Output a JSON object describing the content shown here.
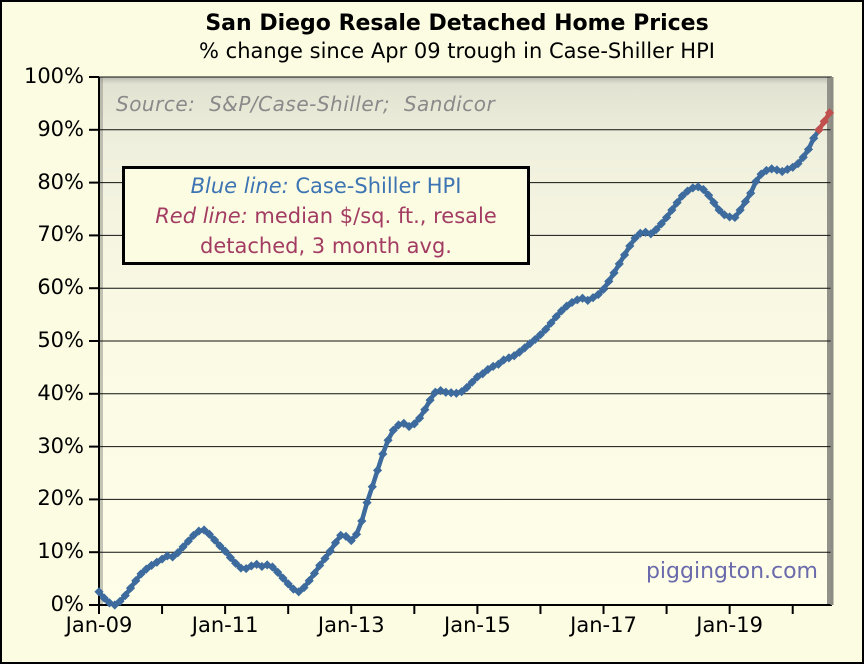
{
  "title": "San Diego Resale Detached Home Prices",
  "subtitle": "% change since Apr 09 trough in Case-Shiller HPI",
  "source_note": "Source:  S&P/Case-Shiller;  Sandicor",
  "watermark": "piggington.com",
  "legend": {
    "blue_prefix": "Blue line:",
    "blue_rest": " Case-Shiller HPI",
    "red_prefix": "Red line:",
    "red_rest": " median $/sq. ft., resale",
    "red_rest2": "detached, 3 month avg."
  },
  "colors": {
    "background": "#FCFCE2",
    "blue_line": "#3D6B9E",
    "red_line": "#C0504D",
    "legend_blue_text": "#3D74B3",
    "legend_red_text": "#A33C63",
    "source_gray": "#8A8A8A",
    "watermark_purple": "#6A6AAC"
  },
  "chart_data": {
    "type": "line",
    "title": "San Diego Resale Detached Home Prices",
    "subtitle": "% change since Apr 09 trough in Case-Shiller HPI",
    "x_unit": "month",
    "x_start": "Jan-2009",
    "x_end": "Aug-2020",
    "total_months": 140,
    "ylim": [
      0,
      100
    ],
    "grid": "horizontal",
    "y_ticks": [
      {
        "label": "100%",
        "value": 100
      },
      {
        "label": "90%",
        "value": 90
      },
      {
        "label": "80%",
        "value": 80
      },
      {
        "label": "70%",
        "value": 70
      },
      {
        "label": "60%",
        "value": 60
      },
      {
        "label": "50%",
        "value": 50
      },
      {
        "label": "40%",
        "value": 40
      },
      {
        "label": "30%",
        "value": 30
      },
      {
        "label": "20%",
        "value": 20
      },
      {
        "label": "10%",
        "value": 10
      },
      {
        "label": "0%",
        "value": 0
      }
    ],
    "x_ticks": [
      {
        "label": "Jan-09",
        "month_index": 0
      },
      {
        "label": "Jan-11",
        "month_index": 24
      },
      {
        "label": "Jan-13",
        "month_index": 48
      },
      {
        "label": "Jan-15",
        "month_index": 72
      },
      {
        "label": "Jan-17",
        "month_index": 96
      },
      {
        "label": "Jan-19",
        "month_index": 120
      }
    ],
    "minor_tick_months": [
      0,
      12,
      24,
      36,
      48,
      60,
      72,
      84,
      96,
      108,
      120,
      132
    ],
    "series": [
      {
        "name": "Case-Shiller HPI",
        "color": "#3D6B9E",
        "marker": "diamond",
        "start_index": 0,
        "start_month": "Jan-2009",
        "values": [
          2.5,
          1.3,
          0.4,
          0.0,
          0.7,
          1.8,
          3.2,
          4.6,
          5.9,
          6.8,
          7.5,
          8.1,
          8.7,
          9.3,
          9.1,
          9.9,
          11.0,
          12.1,
          13.2,
          14.0,
          14.2,
          13.4,
          12.3,
          11.2,
          10.2,
          9.0,
          7.9,
          7.0,
          6.9,
          7.4,
          7.7,
          7.3,
          7.6,
          7.2,
          6.2,
          5.1,
          4.0,
          3.0,
          2.5,
          3.3,
          4.6,
          6.0,
          7.5,
          8.8,
          10.2,
          11.8,
          13.2,
          13.0,
          12.2,
          13.4,
          15.9,
          19.4,
          22.4,
          25.5,
          28.6,
          31.2,
          33.1,
          34.1,
          34.4,
          33.8,
          34.3,
          35.4,
          37.0,
          38.8,
          40.3,
          40.6,
          40.3,
          40.2,
          40.1,
          40.4,
          41.2,
          42.2,
          43.2,
          43.8,
          44.6,
          45.2,
          45.6,
          46.4,
          46.8,
          47.2,
          47.9,
          48.7,
          49.5,
          50.3,
          51.2,
          52.2,
          53.4,
          54.6,
          55.7,
          56.6,
          57.3,
          57.8,
          58.1,
          57.7,
          58.2,
          58.8,
          59.8,
          61.3,
          62.9,
          64.6,
          66.3,
          68.0,
          69.5,
          70.4,
          70.6,
          70.3,
          71.1,
          72.2,
          73.4,
          74.8,
          76.2,
          77.5,
          78.4,
          79.0,
          79.2,
          78.7,
          77.6,
          76.2,
          74.8,
          73.9,
          73.5,
          73.4,
          74.8,
          76.4,
          78.0,
          80.2,
          81.6,
          82.3,
          82.6,
          82.4,
          82.1,
          82.5,
          82.9,
          83.6,
          84.8,
          86.3,
          88.4,
          90.0
        ]
      },
      {
        "name": "median $/sq. ft., resale detached, 3 month avg.",
        "color": "#C0504D",
        "marker": "diamond",
        "start_index": 137,
        "start_month": "Jun-2020",
        "values": [
          90.0,
          91.6,
          93.2
        ]
      }
    ]
  }
}
